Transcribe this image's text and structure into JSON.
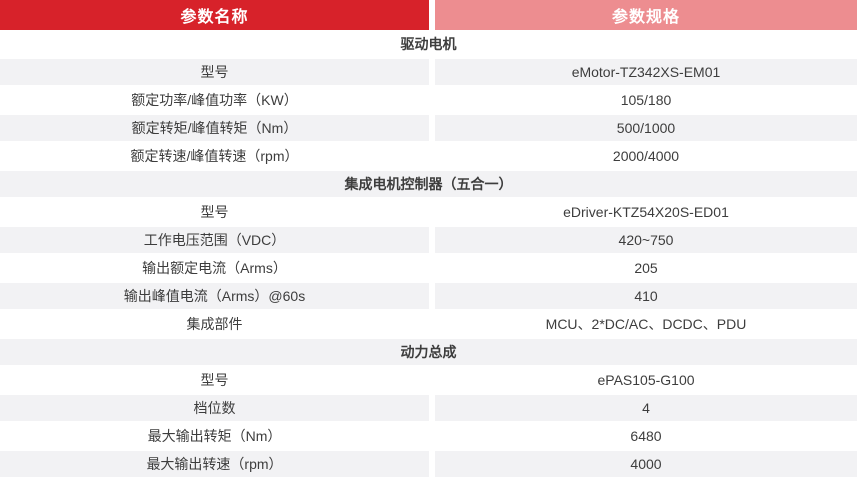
{
  "colors": {
    "header_red": "#d7222a",
    "header_pink": "#ed8d90",
    "row_gray": "#f2f2f4",
    "header_text": "#ffffff",
    "body_text": "#3d3d3d"
  },
  "table": {
    "header": {
      "param_name": "参数名称",
      "param_spec": "参数规格"
    },
    "rows": [
      {
        "type": "section",
        "label": "驱动电机",
        "value": ""
      },
      {
        "type": "param",
        "label": "型号",
        "value": "eMotor-TZ342XS-EM01"
      },
      {
        "type": "param",
        "label": "额定功率/峰值功率（KW）",
        "value": "105/180"
      },
      {
        "type": "param",
        "label": "额定转矩/峰值转矩（Nm）",
        "value": "500/1000"
      },
      {
        "type": "param",
        "label": "额定转速/峰值转速（rpm）",
        "value": "2000/4000"
      },
      {
        "type": "section",
        "label": "集成电机控制器（五合一）",
        "value": ""
      },
      {
        "type": "param",
        "label": "型号",
        "value": "eDriver-KTZ54X20S-ED01"
      },
      {
        "type": "param",
        "label": "工作电压范围（VDC）",
        "value": "420~750"
      },
      {
        "type": "param",
        "label": "输出额定电流（Arms）",
        "value": "205"
      },
      {
        "type": "param",
        "label": "输出峰值电流（Arms）@60s",
        "value": "410"
      },
      {
        "type": "param",
        "label": "集成部件",
        "value": "MCU、2*DC/AC、DCDC、PDU"
      },
      {
        "type": "section",
        "label": "动力总成",
        "value": ""
      },
      {
        "type": "param",
        "label": "型号",
        "value": "ePAS105-G100"
      },
      {
        "type": "param",
        "label": "档位数",
        "value": "4"
      },
      {
        "type": "param",
        "label": "最大输出转矩（Nm）",
        "value": "6480"
      },
      {
        "type": "param",
        "label": "最大输出转速（rpm）",
        "value": "4000"
      }
    ]
  }
}
